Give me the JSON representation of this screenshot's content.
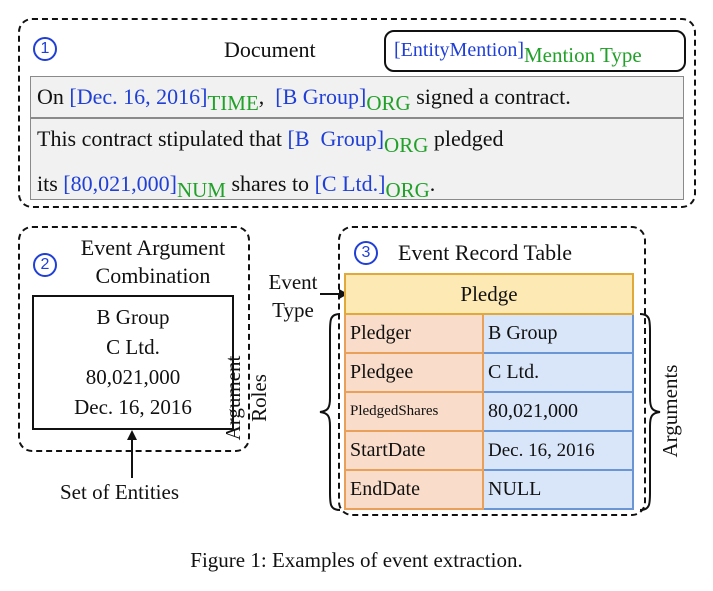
{
  "panel1": {
    "num": "1",
    "title": "Document",
    "legend": {
      "mention": "[EntityMention]",
      "type": "Mention Type"
    },
    "line1": {
      "t0": "On ",
      "m1": "[Dec. 16, 2016]",
      "t1": "TIME",
      "t2": ",  ",
      "m2": "[B Group]",
      "t3": "ORG",
      "t4": " signed a contract."
    },
    "line2": {
      "t0": "This contract stipulated that ",
      "m1": "[B  Group]",
      "t1": "ORG",
      "t2": " pledged"
    },
    "line3": {
      "t0": "its ",
      "m1": "[80,021,000]",
      "t1": "NUM",
      "t2": " shares to ",
      "m2": "[C Ltd.]",
      "t3": "ORG",
      "t4": "."
    }
  },
  "panel2": {
    "num": "2",
    "title_l1": "Event Argument",
    "title_l2": "Combination",
    "entities": [
      "B Group",
      "C Ltd.",
      "80,021,000",
      "Dec. 16, 2016"
    ],
    "set_label": "Set of Entities"
  },
  "panel3": {
    "num": "3",
    "title": "Event Record Table",
    "event_type_label_l1": "Event",
    "event_type_label_l2": "Type",
    "roles_label_l1": "Argument",
    "roles_label_l2": "Roles",
    "arguments_label": "Arguments",
    "event_type": "Pledge",
    "rows": [
      {
        "role": "Pledger",
        "arg": "B Group"
      },
      {
        "role": "Pledgee",
        "arg": "C Ltd."
      },
      {
        "role": "PledgedShares",
        "arg": "80,021,000"
      },
      {
        "role": "StartDate",
        "arg": "Dec. 16, 2016"
      },
      {
        "role": "EndDate",
        "arg": "NULL"
      }
    ]
  },
  "caption": "Figure 1: Examples of event extraction.",
  "colors": {
    "mention": "#1f3fd6",
    "type": "#22a12a",
    "role_fill": "#f9dcc9",
    "arg_fill": "#d9e6f9",
    "type_fill": "#fde9b4"
  }
}
